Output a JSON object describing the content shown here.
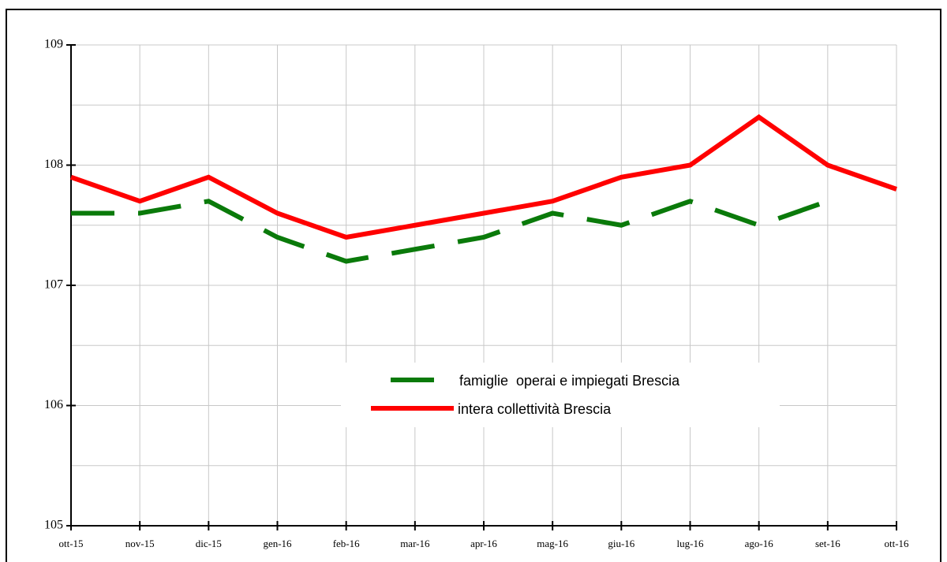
{
  "chart_data": {
    "type": "line",
    "categories": [
      "ott-15",
      "nov-15",
      "dic-15",
      "gen-16",
      "feb-16",
      "mar-16",
      "apr-16",
      "mag-16",
      "giu-16",
      "lug-16",
      "ago-16",
      "set-16",
      "ott-16"
    ],
    "series": [
      {
        "name": "famiglie  operai e impiegati Brescia",
        "color": "#0a7a0a",
        "dashed": true,
        "values": [
          107.6,
          107.6,
          107.7,
          107.4,
          107.2,
          107.3,
          107.4,
          107.6,
          107.5,
          107.7,
          107.5,
          107.7,
          null
        ]
      },
      {
        "name": "intera collettività Brescia",
        "color": "#ff0000",
        "dashed": false,
        "values": [
          107.9,
          107.7,
          107.9,
          107.6,
          107.4,
          107.5,
          107.6,
          107.7,
          107.9,
          108.0,
          108.4,
          108.0,
          107.8
        ]
      }
    ],
    "ylim": [
      105,
      109
    ],
    "yticks": [
      105,
      106,
      107,
      108,
      109
    ],
    "yminor": [
      105.5,
      106.5,
      107.5,
      108.5
    ],
    "grid": true
  }
}
